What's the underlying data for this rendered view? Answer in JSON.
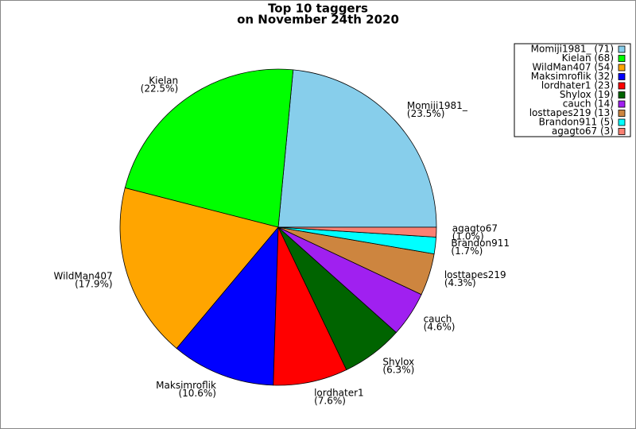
{
  "chart_data": {
    "type": "pie",
    "title": "Top 10 taggers",
    "subtitle": "on November 24th 2020",
    "categories": [
      "Momiji1981_",
      "Kielan",
      "WildMan407",
      "Maksimroflik",
      "lordhater1",
      "Shylox",
      "cauch",
      "losttapes219",
      "Brandon911",
      "agagto67"
    ],
    "values": [
      23.5,
      22.5,
      17.9,
      10.6,
      7.6,
      6.3,
      4.6,
      4.3,
      1.7,
      1.0
    ],
    "value_labels": [
      "(23.5%)",
      "(22.5%)",
      "(17.9%)",
      "(10.6%)",
      "(7.6%)",
      "(6.3%)",
      "(4.6%)",
      "(4.3%)",
      "(1.7%)",
      "(1.0%)"
    ],
    "legend_labels": [
      "Momiji1981_ (71)",
      "Kielan (68)",
      "WildMan407 (54)",
      "Maksimroflik (32)",
      "lordhater1 (23)",
      "Shylox (19)",
      "cauch (14)",
      "losttapes219 (13)",
      "Brandon911 (5)",
      "agagto67 (3)"
    ],
    "colors": [
      "#87ceeb",
      "#00ff00",
      "#ffa500",
      "#0000ff",
      "#ff0000",
      "#006400",
      "#a020f0",
      "#cd853f",
      "#00ffff",
      "#fa8072"
    ],
    "legend": "upper right"
  }
}
